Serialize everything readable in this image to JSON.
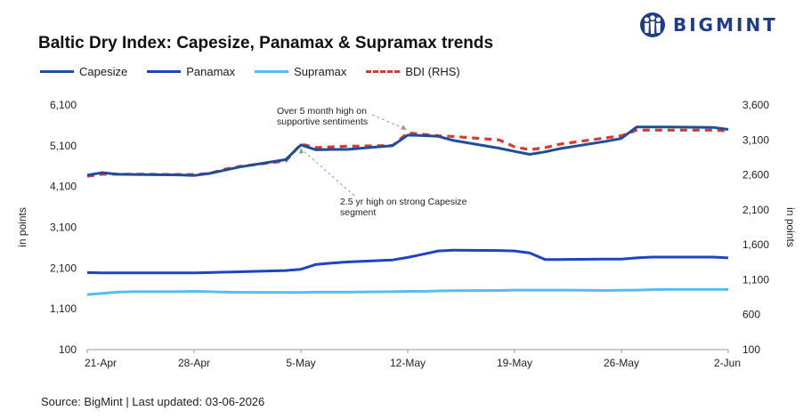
{
  "brand": {
    "logo_text": "BIGMINT",
    "logo_icon": "people-group-icon",
    "color": "#1f3c88"
  },
  "footer": {
    "source": "Source: BigMint | Last updated: 03-06-2026"
  },
  "chart_data": {
    "type": "line",
    "title": "Baltic Dry Index: Capesize, Panamax & Supramax trends",
    "ylabel": "in points",
    "y2label": "in points",
    "ylim": [
      100,
      6100
    ],
    "yticks": [
      100,
      1100,
      2100,
      3100,
      4100,
      5100,
      6100
    ],
    "yticklabels": [
      "100",
      "1,100",
      "2,100",
      "3,100",
      "4,100",
      "5,100",
      "6,100"
    ],
    "y2lim": [
      100,
      3600
    ],
    "y2ticks": [
      100,
      600,
      1100,
      1600,
      2100,
      2600,
      3100,
      3600
    ],
    "y2ticklabels": [
      "100",
      "600",
      "1,100",
      "1,600",
      "2,100",
      "2,600",
      "3,100",
      "3,600"
    ],
    "x": [
      "2026-04-21",
      "2026-04-22",
      "2026-04-23",
      "2026-04-24",
      "2026-04-27",
      "2026-04-28",
      "2026-04-29",
      "2026-04-30",
      "2026-05-01",
      "2026-05-04",
      "2026-05-05",
      "2026-05-06",
      "2026-05-07",
      "2026-05-08",
      "2026-05-11",
      "2026-05-12",
      "2026-05-13",
      "2026-05-14",
      "2026-05-15",
      "2026-05-18",
      "2026-05-19",
      "2026-05-20",
      "2026-05-21",
      "2026-05-22",
      "2026-05-25",
      "2026-05-26",
      "2026-05-27",
      "2026-05-28",
      "2026-05-29",
      "2026-06-01",
      "2026-06-02"
    ],
    "xticks": [
      "2026-04-21",
      "2026-04-28",
      "2026-05-05",
      "2026-05-12",
      "2026-05-19",
      "2026-05-26",
      "2026-06-02"
    ],
    "xticklabels": [
      "21-Apr",
      "28-Apr",
      "5-May",
      "12-May",
      "19-May",
      "26-May",
      "2-Jun"
    ],
    "series": [
      {
        "name": "Capesize",
        "axis": "left",
        "color": "#1f4e99",
        "dash": "none",
        "values": [
          4380,
          4440,
          4400,
          4395,
          4385,
          4370,
          4420,
          4500,
          4580,
          4760,
          5120,
          5000,
          5010,
          5010,
          5100,
          5360,
          5350,
          5330,
          5230,
          5040,
          4960,
          4890,
          4950,
          5030,
          5210,
          5280,
          5560,
          5560,
          5560,
          5550,
          5500
        ]
      },
      {
        "name": "Panamax",
        "axis": "left",
        "color": "#1d44c4",
        "dash": "none",
        "values": [
          1990,
          1980,
          1980,
          1980,
          1980,
          1980,
          1990,
          2000,
          2010,
          2040,
          2070,
          2190,
          2220,
          2250,
          2300,
          2360,
          2440,
          2520,
          2540,
          2530,
          2520,
          2470,
          2310,
          2310,
          2320,
          2320,
          2350,
          2370,
          2370,
          2370,
          2350
        ]
      },
      {
        "name": "Supramax",
        "axis": "left",
        "color": "#56bdf0",
        "dash": "none",
        "values": [
          1450,
          1480,
          1510,
          1520,
          1520,
          1530,
          1520,
          1510,
          1505,
          1500,
          1500,
          1510,
          1510,
          1510,
          1520,
          1530,
          1530,
          1540,
          1545,
          1550,
          1560,
          1560,
          1560,
          1560,
          1550,
          1555,
          1560,
          1570,
          1575,
          1575,
          1575
        ]
      },
      {
        "name": "BDI (RHS)",
        "axis": "right",
        "color": "#d93b30",
        "dash": "8,6",
        "values": [
          2580,
          2610,
          2610,
          2610,
          2605,
          2605,
          2620,
          2680,
          2720,
          2800,
          3040,
          2990,
          3000,
          3010,
          3020,
          3200,
          3180,
          3160,
          3150,
          3100,
          3000,
          2960,
          2990,
          3040,
          3130,
          3160,
          3240,
          3240,
          3240,
          3240,
          3230
        ]
      }
    ],
    "annotations": [
      {
        "lines": [
          "Over 5 month high on",
          "supportive sentiments"
        ],
        "target_x": "2026-05-12",
        "target_series": "BDI (RHS)"
      },
      {
        "lines": [
          "2.5 yr high on strong Capesize",
          "segment"
        ],
        "target_x": "2026-05-05",
        "target_series": "Capesize"
      }
    ],
    "legend_position": "top-left",
    "grid": false
  }
}
